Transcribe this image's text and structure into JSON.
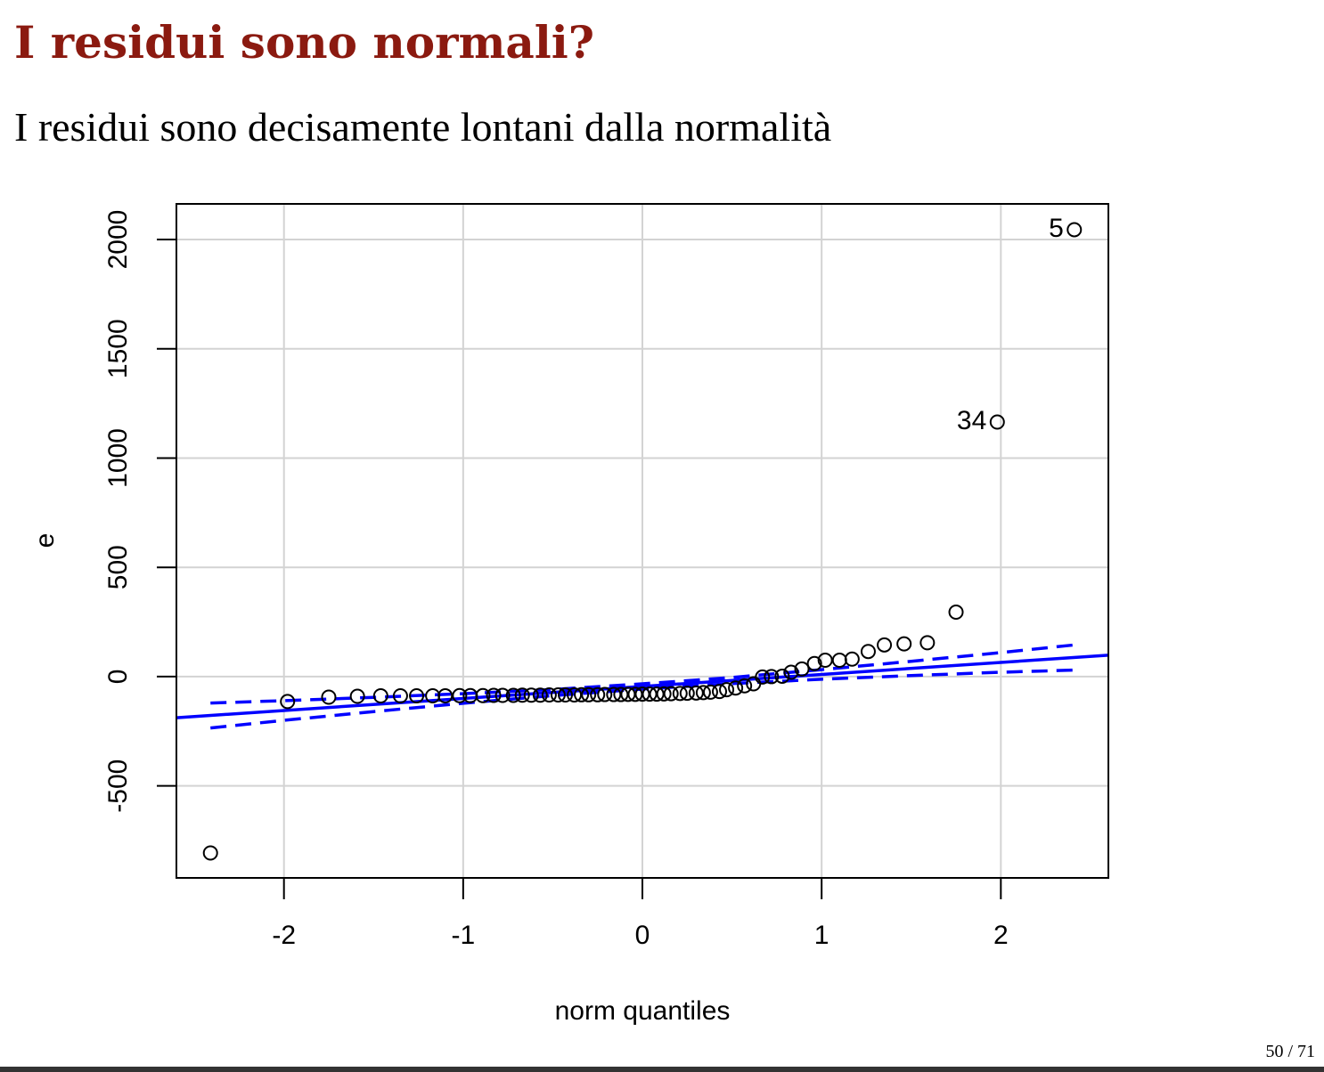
{
  "title": "I residui sono normali?",
  "subtitle": "I residui sono decisamente lontani dalla normalità",
  "page_number": "50 / 71",
  "chart_data": {
    "type": "qqplot",
    "x_label": "norm quantiles",
    "y_label": "e",
    "xlim": [
      -2.6,
      2.6
    ],
    "ylim": [
      -921,
      2163
    ],
    "xticks": [
      -2,
      -1,
      0,
      1,
      2
    ],
    "yticks": [
      -500,
      0,
      500,
      1000,
      1500,
      2000
    ],
    "grid": true,
    "point_color": "#000000",
    "line_color": "#0000ff",
    "x": [
      -2.41,
      -1.98,
      -1.75,
      -1.59,
      -1.46,
      -1.35,
      -1.26,
      -1.17,
      -1.1,
      -1.02,
      -0.96,
      -0.89,
      -0.83,
      -0.78,
      -0.72,
      -0.67,
      -0.62,
      -0.57,
      -0.52,
      -0.47,
      -0.43,
      -0.38,
      -0.34,
      -0.3,
      -0.25,
      -0.21,
      -0.16,
      -0.12,
      -0.08,
      -0.04,
      0.0,
      0.04,
      0.08,
      0.12,
      0.16,
      0.21,
      0.25,
      0.3,
      0.34,
      0.38,
      0.43,
      0.47,
      0.52,
      0.57,
      0.62,
      0.67,
      0.72,
      0.78,
      0.83,
      0.89,
      0.96,
      1.02,
      1.1,
      1.17,
      1.26,
      1.35,
      1.46,
      1.59,
      1.75,
      1.98,
      2.41
    ],
    "y": [
      -807,
      -114,
      -94,
      -90,
      -88,
      -88,
      -88,
      -88,
      -88,
      -87,
      -87,
      -87,
      -86,
      -86,
      -86,
      -85,
      -85,
      -85,
      -84,
      -84,
      -84,
      -84,
      -83,
      -83,
      -83,
      -82,
      -82,
      -82,
      -81,
      -81,
      -80,
      -80,
      -80,
      -79,
      -78,
      -77,
      -76,
      -75,
      -73,
      -71,
      -68,
      -60,
      -52,
      -42,
      -33,
      -2,
      0,
      2,
      20,
      35,
      60,
      75,
      75,
      80,
      115,
      145,
      150,
      155,
      295,
      1165,
      2045
    ],
    "point_labels": [
      {
        "index": 60,
        "label": "5"
      },
      {
        "index": 59,
        "label": "34"
      }
    ],
    "reference_line": {
      "intercept": -45,
      "slope": 55
    },
    "envelope": {
      "x": [
        -2.41,
        -2,
        -1.5,
        -1,
        -0.5,
        0,
        0.5,
        1,
        1.5,
        2,
        2.41
      ],
      "upper": [
        -121,
        -110,
        -95,
        -78,
        -59,
        -33,
        -4,
        32,
        70,
        110,
        145
      ],
      "lower": [
        -235,
        -200,
        -160,
        -122,
        -87,
        -57,
        -32,
        -12,
        5,
        20,
        30
      ]
    }
  }
}
